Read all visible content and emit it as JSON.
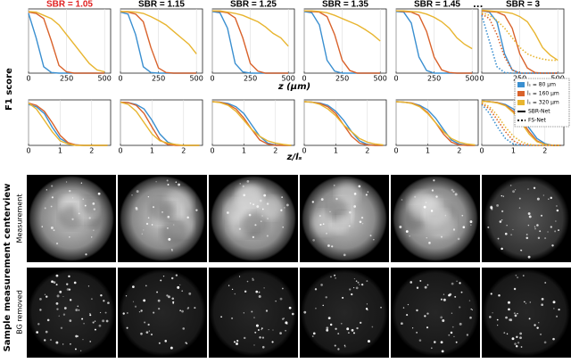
{
  "chart_data": [
    {
      "type": "line",
      "title": "SBR = 1.05",
      "title_color": "#e02020",
      "x": [
        0,
        50,
        100,
        150,
        200,
        250,
        300,
        350,
        400,
        450,
        500
      ],
      "xlim": [
        0,
        540
      ],
      "xticks": [
        0,
        250,
        500
      ],
      "ylim": [
        0,
        1
      ],
      "grid": true,
      "series": [
        {
          "color": "#3a8fd0",
          "values": [
            0.93,
            0.55,
            0.1,
            0.01,
            0,
            0,
            0,
            0,
            0,
            0,
            0
          ]
        },
        {
          "color": "#d9622b",
          "values": [
            0.95,
            0.93,
            0.85,
            0.5,
            0.12,
            0.02,
            0,
            0,
            0,
            0,
            0
          ]
        },
        {
          "color": "#e8b52f",
          "values": [
            0.96,
            0.95,
            0.9,
            0.85,
            0.75,
            0.6,
            0.45,
            0.3,
            0.15,
            0.05,
            0.02
          ]
        }
      ]
    },
    {
      "type": "line",
      "title": "SBR = 1.15",
      "title_color": "#000000",
      "x": [
        0,
        50,
        100,
        150,
        200,
        250,
        300,
        350,
        400,
        450,
        500
      ],
      "xlim": [
        0,
        540
      ],
      "xticks": [
        0,
        250,
        500
      ],
      "ylim": [
        0,
        1
      ],
      "grid": true,
      "series": [
        {
          "color": "#3a8fd0",
          "values": [
            0.95,
            0.92,
            0.6,
            0.1,
            0.01,
            0,
            0,
            0,
            0,
            0,
            0
          ]
        },
        {
          "color": "#d9622b",
          "values": [
            0.96,
            0.95,
            0.92,
            0.8,
            0.4,
            0.08,
            0.01,
            0,
            0,
            0,
            0
          ]
        },
        {
          "color": "#e8b52f",
          "values": [
            0.96,
            0.96,
            0.95,
            0.93,
            0.88,
            0.82,
            0.75,
            0.65,
            0.55,
            0.45,
            0.3
          ]
        }
      ]
    },
    {
      "type": "line",
      "title": "SBR = 1.25",
      "title_color": "#000000",
      "x": [
        0,
        50,
        100,
        150,
        200,
        250,
        300,
        350,
        400,
        450,
        500
      ],
      "xlim": [
        0,
        540
      ],
      "xticks": [
        0,
        250,
        500
      ],
      "ylim": [
        0,
        1
      ],
      "grid": true,
      "series": [
        {
          "color": "#3a8fd0",
          "values": [
            0.96,
            0.94,
            0.7,
            0.15,
            0.02,
            0,
            0,
            0,
            0,
            0,
            0
          ]
        },
        {
          "color": "#d9622b",
          "values": [
            0.97,
            0.96,
            0.94,
            0.86,
            0.55,
            0.15,
            0.03,
            0,
            0,
            0,
            0
          ]
        },
        {
          "color": "#e8b52f",
          "values": [
            0.97,
            0.97,
            0.95,
            0.93,
            0.9,
            0.85,
            0.8,
            0.72,
            0.62,
            0.55,
            0.42
          ]
        }
      ]
    },
    {
      "type": "line",
      "title": "SBR = 1.35",
      "title_color": "#000000",
      "x": [
        0,
        50,
        100,
        150,
        200,
        250,
        300,
        350,
        400,
        450,
        500
      ],
      "xlim": [
        0,
        540
      ],
      "xticks": [
        0,
        250,
        500
      ],
      "ylim": [
        0,
        1
      ],
      "grid": true,
      "series": [
        {
          "color": "#3a8fd0",
          "values": [
            0.96,
            0.94,
            0.75,
            0.2,
            0.03,
            0,
            0,
            0,
            0,
            0,
            0
          ]
        },
        {
          "color": "#d9622b",
          "values": [
            0.97,
            0.96,
            0.95,
            0.88,
            0.6,
            0.2,
            0.04,
            0,
            0,
            0,
            0
          ]
        },
        {
          "color": "#e8b52f",
          "values": [
            0.97,
            0.97,
            0.96,
            0.94,
            0.9,
            0.85,
            0.8,
            0.75,
            0.68,
            0.6,
            0.5
          ]
        }
      ]
    },
    {
      "type": "line",
      "title": "SBR = 1.45",
      "title_color": "#000000",
      "x": [
        0,
        50,
        100,
        150,
        200,
        250,
        300,
        350,
        400,
        450,
        500
      ],
      "xlim": [
        0,
        540
      ],
      "xticks": [
        0,
        250,
        500
      ],
      "ylim": [
        0,
        1
      ],
      "grid": true,
      "series": [
        {
          "color": "#3a8fd0",
          "values": [
            0.96,
            0.95,
            0.78,
            0.25,
            0.04,
            0,
            0,
            0,
            0,
            0,
            0
          ]
        },
        {
          "color": "#d9622b",
          "values": [
            0.97,
            0.96,
            0.95,
            0.9,
            0.65,
            0.25,
            0.05,
            0.01,
            0,
            0,
            0
          ]
        },
        {
          "color": "#e8b52f",
          "values": [
            0.97,
            0.97,
            0.96,
            0.95,
            0.92,
            0.87,
            0.8,
            0.7,
            0.55,
            0.45,
            0.38
          ]
        }
      ]
    },
    {
      "type": "line",
      "title": "SBR = 3",
      "title_color": "#000000",
      "x": [
        0,
        50,
        100,
        150,
        200,
        250,
        300,
        350,
        400,
        450,
        500
      ],
      "xlim": [
        0,
        540
      ],
      "xticks": [
        0,
        250,
        500
      ],
      "ylim": [
        0,
        1
      ],
      "grid": true,
      "series": [
        {
          "color": "#3a8fd0",
          "values": [
            0.97,
            0.95,
            0.8,
            0.3,
            0.05,
            0,
            0,
            0,
            0,
            0,
            0
          ]
        },
        {
          "color": "#d9622b",
          "values": [
            0.97,
            0.96,
            0.95,
            0.9,
            0.7,
            0.3,
            0.08,
            0.01,
            0,
            0,
            0
          ]
        },
        {
          "color": "#e8b52f",
          "values": [
            0.98,
            0.97,
            0.96,
            0.95,
            0.93,
            0.88,
            0.8,
            0.62,
            0.4,
            0.28,
            0.2
          ]
        },
        {
          "color": "#3a8fd0",
          "dashed": true,
          "values": [
            0.9,
            0.5,
            0.1,
            0.01,
            0,
            0,
            0,
            0,
            0,
            0,
            0
          ]
        },
        {
          "color": "#d9622b",
          "dashed": true,
          "values": [
            0.92,
            0.85,
            0.6,
            0.25,
            0.05,
            0,
            0,
            0,
            0,
            0,
            0
          ]
        },
        {
          "color": "#e8b52f",
          "dashed": true,
          "values": [
            0.94,
            0.9,
            0.82,
            0.7,
            0.55,
            0.4,
            0.3,
            0.25,
            0.22,
            0.2,
            0.2
          ]
        }
      ]
    },
    {
      "type": "line",
      "x": [
        0,
        0.25,
        0.5,
        0.75,
        1,
        1.25,
        1.5,
        1.75,
        2,
        2.25,
        2.5
      ],
      "xlim": [
        0,
        2.6
      ],
      "xticks": [
        0,
        1,
        2
      ],
      "ylim": [
        0,
        1
      ],
      "grid": true,
      "series": [
        {
          "color": "#3a8fd0",
          "values": [
            0.9,
            0.85,
            0.7,
            0.4,
            0.15,
            0.05,
            0.01,
            0,
            0,
            0,
            0
          ]
        },
        {
          "color": "#d9622b",
          "values": [
            0.93,
            0.88,
            0.75,
            0.5,
            0.22,
            0.06,
            0.01,
            0,
            0,
            0,
            0
          ]
        },
        {
          "color": "#e8b52f",
          "values": [
            0.93,
            0.8,
            0.55,
            0.3,
            0.1,
            0.03,
            0,
            0,
            0,
            0,
            0
          ]
        }
      ]
    },
    {
      "type": "line",
      "x": [
        0,
        0.25,
        0.5,
        0.75,
        1,
        1.25,
        1.5,
        1.75,
        2,
        2.25,
        2.5
      ],
      "xlim": [
        0,
        2.6
      ],
      "xticks": [
        0,
        1,
        2
      ],
      "ylim": [
        0,
        1
      ],
      "grid": true,
      "series": [
        {
          "color": "#3a8fd0",
          "values": [
            0.95,
            0.94,
            0.9,
            0.8,
            0.55,
            0.25,
            0.07,
            0.01,
            0,
            0,
            0
          ]
        },
        {
          "color": "#d9622b",
          "values": [
            0.95,
            0.94,
            0.88,
            0.7,
            0.4,
            0.12,
            0.02,
            0,
            0,
            0,
            0
          ]
        },
        {
          "color": "#e8b52f",
          "values": [
            0.95,
            0.9,
            0.75,
            0.5,
            0.25,
            0.1,
            0.05,
            0.02,
            0,
            0,
            0
          ]
        }
      ]
    },
    {
      "type": "line",
      "x": [
        0,
        0.25,
        0.5,
        0.75,
        1,
        1.25,
        1.5,
        1.75,
        2,
        2.25,
        2.5
      ],
      "xlim": [
        0,
        2.6
      ],
      "xticks": [
        0,
        1,
        2
      ],
      "ylim": [
        0,
        1
      ],
      "grid": true,
      "series": [
        {
          "color": "#3a8fd0",
          "values": [
            0.96,
            0.95,
            0.92,
            0.85,
            0.7,
            0.45,
            0.2,
            0.05,
            0.01,
            0,
            0
          ]
        },
        {
          "color": "#d9622b",
          "values": [
            0.96,
            0.95,
            0.9,
            0.8,
            0.6,
            0.35,
            0.12,
            0.03,
            0,
            0,
            0
          ]
        },
        {
          "color": "#e8b52f",
          "values": [
            0.96,
            0.94,
            0.88,
            0.75,
            0.55,
            0.35,
            0.2,
            0.1,
            0.05,
            0.02,
            0
          ]
        }
      ]
    },
    {
      "type": "line",
      "x": [
        0,
        0.25,
        0.5,
        0.75,
        1,
        1.25,
        1.5,
        1.75,
        2,
        2.25,
        2.5
      ],
      "xlim": [
        0,
        2.6
      ],
      "xticks": [
        0,
        1,
        2
      ],
      "ylim": [
        0,
        1
      ],
      "grid": true,
      "series": [
        {
          "color": "#3a8fd0",
          "values": [
            0.96,
            0.95,
            0.93,
            0.88,
            0.75,
            0.55,
            0.3,
            0.1,
            0.02,
            0,
            0
          ]
        },
        {
          "color": "#d9622b",
          "values": [
            0.96,
            0.95,
            0.92,
            0.85,
            0.7,
            0.45,
            0.2,
            0.05,
            0.01,
            0,
            0
          ]
        },
        {
          "color": "#e8b52f",
          "values": [
            0.96,
            0.95,
            0.9,
            0.8,
            0.65,
            0.45,
            0.3,
            0.15,
            0.07,
            0.03,
            0.01
          ]
        }
      ]
    },
    {
      "type": "line",
      "x": [
        0,
        0.25,
        0.5,
        0.75,
        1,
        1.25,
        1.5,
        1.75,
        2,
        2.25,
        2.5
      ],
      "xlim": [
        0,
        2.6
      ],
      "xticks": [
        0,
        1,
        2
      ],
      "ylim": [
        0,
        1
      ],
      "grid": true,
      "series": [
        {
          "color": "#3a8fd0",
          "values": [
            0.96,
            0.95,
            0.93,
            0.88,
            0.78,
            0.6,
            0.35,
            0.12,
            0.03,
            0,
            0
          ]
        },
        {
          "color": "#d9622b",
          "values": [
            0.96,
            0.95,
            0.93,
            0.86,
            0.72,
            0.5,
            0.25,
            0.07,
            0.01,
            0,
            0
          ]
        },
        {
          "color": "#e8b52f",
          "values": [
            0.96,
            0.95,
            0.92,
            0.85,
            0.7,
            0.5,
            0.3,
            0.15,
            0.07,
            0.03,
            0.01
          ]
        }
      ]
    },
    {
      "type": "line",
      "x": [
        0,
        0.25,
        0.5,
        0.75,
        1,
        1.25,
        1.5,
        1.75,
        2,
        2.25,
        2.5
      ],
      "xlim": [
        0,
        2.6
      ],
      "xticks": [
        0,
        1,
        2
      ],
      "ylim": [
        0,
        1
      ],
      "grid": true,
      "legend": "upper right",
      "series": [
        {
          "name": "lₛ = 80 μm",
          "color": "#3a8fd0",
          "values": [
            0.97,
            0.96,
            0.94,
            0.9,
            0.8,
            0.62,
            0.38,
            0.15,
            0.04,
            0,
            0
          ]
        },
        {
          "name": "lₛ = 160 μm",
          "color": "#d9622b",
          "values": [
            0.97,
            0.96,
            0.94,
            0.88,
            0.75,
            0.55,
            0.3,
            0.1,
            0.02,
            0,
            0
          ]
        },
        {
          "name": "lₛ = 320 μm",
          "color": "#e8b52f",
          "values": [
            0.97,
            0.96,
            0.93,
            0.87,
            0.72,
            0.5,
            0.25,
            0.08,
            0.02,
            0,
            0
          ]
        },
        {
          "color": "#3a8fd0",
          "dashed": true,
          "values": [
            0.9,
            0.7,
            0.4,
            0.15,
            0.03,
            0,
            0,
            0,
            0,
            0,
            0
          ]
        },
        {
          "color": "#d9622b",
          "dashed": true,
          "values": [
            0.92,
            0.8,
            0.55,
            0.3,
            0.1,
            0.02,
            0,
            0,
            0,
            0,
            0
          ]
        },
        {
          "color": "#e8b52f",
          "dashed": true,
          "values": [
            0.94,
            0.85,
            0.65,
            0.4,
            0.2,
            0.08,
            0.02,
            0,
            0,
            0,
            0
          ]
        }
      ],
      "line_styles": [
        {
          "name": "SBR-Net",
          "dashed": false
        },
        {
          "name": "FS-Net",
          "dashed": true
        }
      ]
    }
  ],
  "figure": {
    "ylabel": "F1 score",
    "xlabel_top": "z (μm)",
    "xlabel_bottom": "z/lₛ",
    "gap_mark": "...",
    "images": {
      "title": "Sample measurement centerview",
      "rows": [
        "Measurement",
        "BG removed"
      ]
    }
  }
}
